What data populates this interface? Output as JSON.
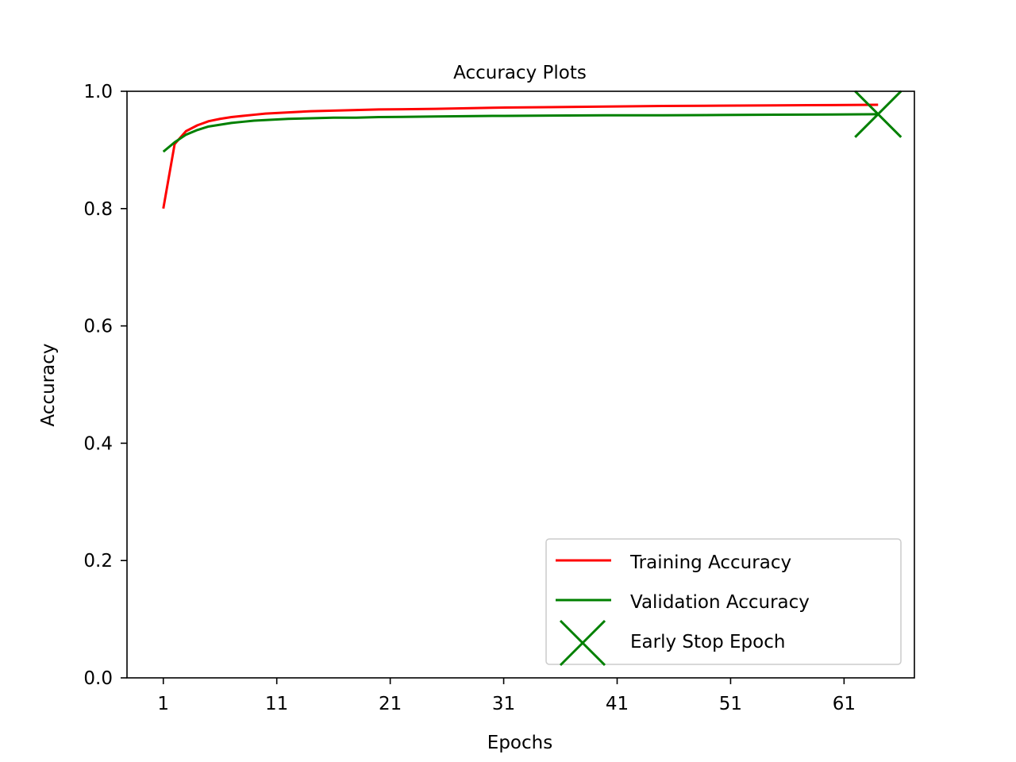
{
  "chart_data": {
    "type": "line",
    "title": "Accuracy Plots",
    "xlabel": "Epochs",
    "ylabel": "Accuracy",
    "xlim": [
      -2.2,
      67.2
    ],
    "ylim": [
      0.0,
      1.0
    ],
    "xticks": [
      1,
      11,
      21,
      31,
      41,
      51,
      61
    ],
    "xtick_labels": [
      "1",
      "11",
      "21",
      "31",
      "41",
      "51",
      "61"
    ],
    "yticks": [
      0.0,
      0.2,
      0.4,
      0.6,
      0.8,
      1.0
    ],
    "ytick_labels": [
      "0.0",
      "0.2",
      "0.4",
      "0.6",
      "0.8",
      "1.0"
    ],
    "grid": false,
    "legend_position": "lower-right",
    "series": [
      {
        "name": "Training Accuracy",
        "color": "#ff0000",
        "x": [
          1,
          2,
          3,
          4,
          5,
          6,
          7,
          8,
          9,
          10,
          12,
          14,
          16,
          18,
          20,
          25,
          30,
          35,
          40,
          45,
          50,
          55,
          60,
          64
        ],
        "y": [
          0.8,
          0.91,
          0.932,
          0.942,
          0.949,
          0.953,
          0.956,
          0.958,
          0.96,
          0.962,
          0.964,
          0.966,
          0.967,
          0.968,
          0.969,
          0.97,
          0.972,
          0.973,
          0.974,
          0.975,
          0.9755,
          0.976,
          0.9765,
          0.977
        ]
      },
      {
        "name": "Validation Accuracy",
        "color": "#008000",
        "x": [
          1,
          2,
          3,
          4,
          5,
          6,
          7,
          8,
          9,
          10,
          12,
          14,
          16,
          18,
          20,
          25,
          30,
          35,
          40,
          45,
          50,
          55,
          60,
          64
        ],
        "y": [
          0.897,
          0.913,
          0.926,
          0.934,
          0.94,
          0.943,
          0.946,
          0.948,
          0.95,
          0.951,
          0.953,
          0.954,
          0.955,
          0.955,
          0.956,
          0.957,
          0.958,
          0.9585,
          0.959,
          0.959,
          0.9595,
          0.96,
          0.9605,
          0.961
        ]
      }
    ],
    "markers": [
      {
        "name": "Early Stop Epoch",
        "symbol": "x",
        "color": "#008000",
        "x": 64,
        "y": 0.961
      }
    ]
  }
}
